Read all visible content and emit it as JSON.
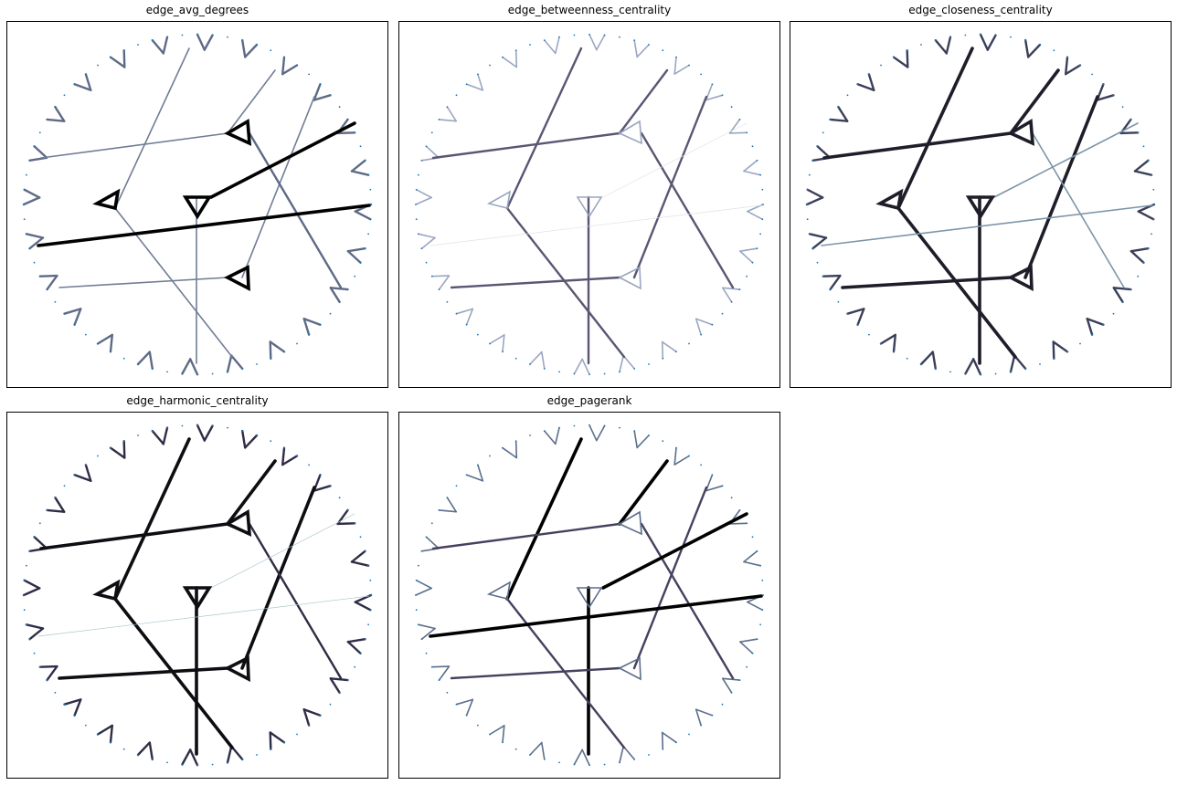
{
  "panels": [
    {
      "id": "p1",
      "title": "edge_avg_degrees",
      "palette": [
        "#9aa8b9",
        "#707d95",
        "#5e6a86",
        "#000000"
      ],
      "nodeColor": "#1f77b4",
      "levels": [
        1,
        1,
        1,
        1,
        1,
        1,
        1,
        2,
        3,
        3
      ],
      "triLevel": 3,
      "pendantLevel": 1,
      "longLevel": 1
    },
    {
      "id": "p2",
      "title": "edge_betweenness_centrality",
      "palette": [
        "#e1e1e6",
        "#9aa6c0",
        "#5a5673",
        "#1f1e2e"
      ],
      "nodeColor": "#1f77b4",
      "levels": [
        2,
        2,
        2,
        2,
        2,
        2,
        2,
        2,
        0,
        0
      ],
      "triLevel": 1,
      "pendantLevel": 0,
      "longLevel": 2
    },
    {
      "id": "p3",
      "title": "edge_closeness_centrality",
      "palette": [
        "#c9d6df",
        "#7c95a9",
        "#3a3f58",
        "#1f1d29"
      ],
      "nodeColor": "#1f77b4",
      "levels": [
        3,
        3,
        3,
        3,
        3,
        3,
        3,
        1,
        1,
        1
      ],
      "triLevel": 3,
      "pendantLevel": 1,
      "longLevel": 3
    },
    {
      "id": "p4",
      "title": "edge_harmonic_centrality",
      "palette": [
        "#a9c6cc",
        "#5f7c95",
        "#2f2c45",
        "#0d0d12"
      ],
      "nodeColor": "#1f77b4",
      "levels": [
        3,
        3,
        3,
        3,
        3,
        3,
        3,
        2,
        0,
        0
      ],
      "triLevel": 3,
      "pendantLevel": 1,
      "longLevel": 3
    },
    {
      "id": "p5",
      "title": "edge_pagerank",
      "palette": [
        "#bcd4dc",
        "#5c6e8a",
        "#47405e",
        "#000000"
      ],
      "nodeColor": "#1f77b4",
      "levels": [
        3,
        3,
        3,
        2,
        2,
        2,
        2,
        2,
        3,
        3
      ],
      "triLevel": 1,
      "pendantLevel": 0,
      "longLevel": 3
    }
  ]
}
